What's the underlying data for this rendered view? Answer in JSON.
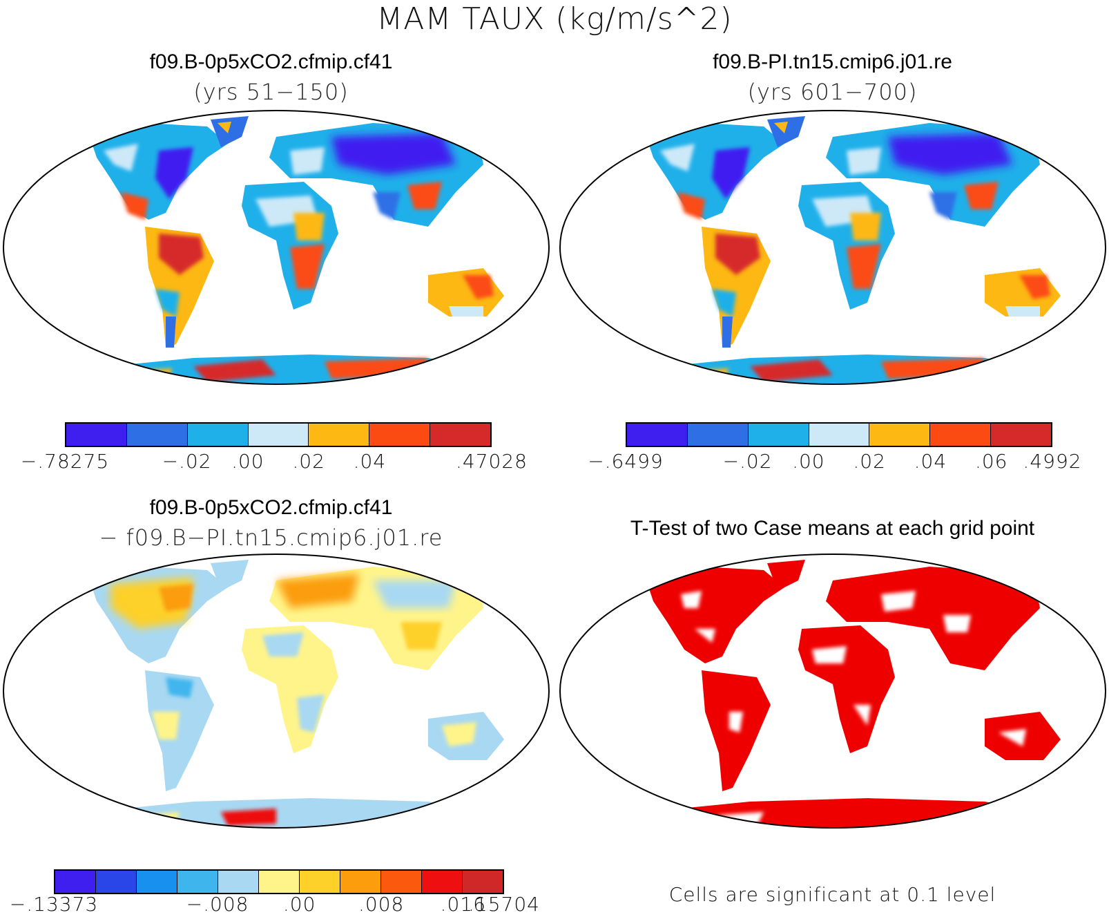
{
  "figure": {
    "title": "MAM TAUX (kg/m/s^2)",
    "footnote": "Cells are significant at 0.1 level"
  },
  "panels": [
    {
      "title": "f09.B-0p5xCO2.cfmip.cf41",
      "subtitle": "(yrs 51−150)",
      "colorbar": {
        "colors": [
          "#3f1ff0",
          "#2f6fe6",
          "#1fb0ea",
          "#cde9f8",
          "#fdb813",
          "#fb4b12",
          "#d62a2a"
        ],
        "labels": [
          "−.78275",
          "−.02",
          ".00",
          ".02",
          ".04",
          ".47028"
        ],
        "label_positions": [
          0,
          2,
          3,
          4,
          5,
          7
        ]
      }
    },
    {
      "title": "f09.B-PI.tn15.cmip6.j01.re",
      "subtitle": "(yrs 601−700)",
      "colorbar": {
        "colors": [
          "#3f1ff0",
          "#2f6fe6",
          "#1fb0ea",
          "#cde9f8",
          "#fdb813",
          "#fb4b12",
          "#d62a2a"
        ],
        "labels": [
          "−.6499",
          "−.02",
          ".00",
          ".02",
          ".04",
          ".06",
          ".4992"
        ],
        "label_positions": [
          0,
          2,
          3,
          4,
          5,
          6,
          7
        ]
      }
    },
    {
      "title": "f09.B-0p5xCO2.cfmip.cf41",
      "subtitle": "− f09.B−PI.tn15.cmip6.j01.re",
      "colorbar": {
        "colors": [
          "#3f1ff0",
          "#2a45e8",
          "#1890f0",
          "#3fb5ee",
          "#a8d8f2",
          "#fff48a",
          "#fdd02a",
          "#fb9d0c",
          "#fb5a0e",
          "#ee1010",
          "#d02828"
        ],
        "labels": [
          "−.13373",
          "−.008",
          ".00",
          ".008",
          ".016",
          ".15704"
        ],
        "label_positions": [
          0,
          4,
          6,
          8,
          10,
          11
        ]
      }
    },
    {
      "title": "T-Test of two Case means at each grid point",
      "signif_color": "#ee0000"
    }
  ]
}
